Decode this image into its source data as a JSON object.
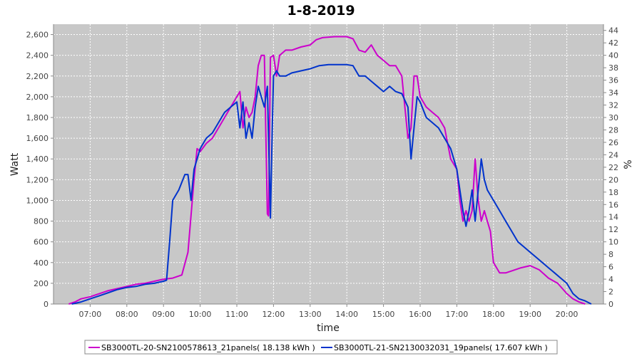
{
  "chart_data": {
    "type": "line",
    "title": "1-8-2019",
    "xlabel": "time",
    "ylabel": "Watt",
    "y2label": "%",
    "x_range_hours": [
      6.0,
      21.0
    ],
    "ylim": [
      0,
      2700
    ],
    "y2lim": [
      0,
      45
    ],
    "x_ticks": [
      "07:00",
      "08:00",
      "09:00",
      "10:00",
      "11:00",
      "12:00",
      "13:00",
      "14:00",
      "15:00",
      "16:00",
      "17:00",
      "18:00",
      "19:00",
      "20:00"
    ],
    "y_ticks": [
      "0",
      "200",
      "400",
      "600",
      "800",
      "1,000",
      "1,200",
      "1,400",
      "1,600",
      "1,800",
      "2,000",
      "2,200",
      "2,400",
      "2,600"
    ],
    "y2_ticks": [
      "0",
      "2",
      "4",
      "6",
      "8",
      "10",
      "12",
      "14",
      "16",
      "18",
      "20",
      "22",
      "24",
      "26",
      "28",
      "30",
      "32",
      "34",
      "36",
      "38",
      "40",
      "42",
      "44"
    ],
    "grid": true,
    "legend_position": "bottom",
    "series": [
      {
        "name": "SB3000TL-20-SN2100578613_21panels( 18.138 kWh )",
        "color": "#cc00cc",
        "points": [
          [
            "06:25",
            0
          ],
          [
            "06:35",
            20
          ],
          [
            "06:45",
            50
          ],
          [
            "07:00",
            70
          ],
          [
            "07:15",
            100
          ],
          [
            "07:30",
            130
          ],
          [
            "07:45",
            150
          ],
          [
            "08:00",
            170
          ],
          [
            "08:15",
            190
          ],
          [
            "08:30",
            200
          ],
          [
            "08:45",
            220
          ],
          [
            "09:00",
            240
          ],
          [
            "09:15",
            250
          ],
          [
            "09:30",
            280
          ],
          [
            "09:40",
            500
          ],
          [
            "09:50",
            1200
          ],
          [
            "09:55",
            1500
          ],
          [
            "10:00",
            1470
          ],
          [
            "10:10",
            1550
          ],
          [
            "10:20",
            1600
          ],
          [
            "10:30",
            1700
          ],
          [
            "10:40",
            1800
          ],
          [
            "10:50",
            1900
          ],
          [
            "11:00",
            2000
          ],
          [
            "11:05",
            2050
          ],
          [
            "11:10",
            1700
          ],
          [
            "11:15",
            1900
          ],
          [
            "11:20",
            1800
          ],
          [
            "11:25",
            1850
          ],
          [
            "11:30",
            2000
          ],
          [
            "11:35",
            2300
          ],
          [
            "11:40",
            2400
          ],
          [
            "11:45",
            2400
          ],
          [
            "11:50",
            870
          ],
          [
            "11:52",
            850
          ],
          [
            "11:55",
            2380
          ],
          [
            "12:00",
            2400
          ],
          [
            "12:05",
            2200
          ],
          [
            "12:10",
            2400
          ],
          [
            "12:20",
            2450
          ],
          [
            "12:30",
            2450
          ],
          [
            "12:45",
            2480
          ],
          [
            "13:00",
            2500
          ],
          [
            "13:10",
            2550
          ],
          [
            "13:20",
            2570
          ],
          [
            "13:40",
            2580
          ],
          [
            "14:00",
            2580
          ],
          [
            "14:10",
            2560
          ],
          [
            "14:20",
            2450
          ],
          [
            "14:30",
            2430
          ],
          [
            "14:40",
            2500
          ],
          [
            "14:50",
            2400
          ],
          [
            "15:00",
            2350
          ],
          [
            "15:10",
            2300
          ],
          [
            "15:20",
            2300
          ],
          [
            "15:30",
            2200
          ],
          [
            "15:40",
            1600
          ],
          [
            "15:45",
            1700
          ],
          [
            "15:50",
            2200
          ],
          [
            "15:55",
            2200
          ],
          [
            "16:00",
            2000
          ],
          [
            "16:10",
            1900
          ],
          [
            "16:20",
            1850
          ],
          [
            "16:30",
            1800
          ],
          [
            "16:40",
            1700
          ],
          [
            "16:50",
            1400
          ],
          [
            "17:00",
            1300
          ],
          [
            "17:05",
            1000
          ],
          [
            "17:10",
            800
          ],
          [
            "17:15",
            900
          ],
          [
            "17:20",
            800
          ],
          [
            "17:25",
            900
          ],
          [
            "17:30",
            1400
          ],
          [
            "17:35",
            1000
          ],
          [
            "17:40",
            800
          ],
          [
            "17:45",
            900
          ],
          [
            "17:50",
            800
          ],
          [
            "17:55",
            700
          ],
          [
            "18:00",
            400
          ],
          [
            "18:10",
            300
          ],
          [
            "18:20",
            300
          ],
          [
            "18:30",
            320
          ],
          [
            "18:45",
            350
          ],
          [
            "19:00",
            370
          ],
          [
            "19:15",
            330
          ],
          [
            "19:30",
            250
          ],
          [
            "19:45",
            200
          ],
          [
            "20:00",
            100
          ],
          [
            "20:10",
            50
          ],
          [
            "20:20",
            20
          ],
          [
            "20:30",
            0
          ]
        ]
      },
      {
        "name": "SB3000TL-21-SN2130032031_19panels( 17.607 kWh )",
        "color": "#0033cc",
        "points": [
          [
            "06:30",
            0
          ],
          [
            "06:45",
            20
          ],
          [
            "07:00",
            50
          ],
          [
            "07:15",
            80
          ],
          [
            "07:30",
            110
          ],
          [
            "07:45",
            140
          ],
          [
            "08:00",
            160
          ],
          [
            "08:15",
            170
          ],
          [
            "08:30",
            190
          ],
          [
            "08:45",
            200
          ],
          [
            "09:00",
            220
          ],
          [
            "09:05",
            230
          ],
          [
            "09:10",
            600
          ],
          [
            "09:15",
            1000
          ],
          [
            "09:25",
            1100
          ],
          [
            "09:35",
            1250
          ],
          [
            "09:40",
            1250
          ],
          [
            "09:45",
            1000
          ],
          [
            "09:50",
            1300
          ],
          [
            "10:00",
            1500
          ],
          [
            "10:10",
            1600
          ],
          [
            "10:20",
            1650
          ],
          [
            "10:30",
            1750
          ],
          [
            "10:40",
            1850
          ],
          [
            "10:50",
            1900
          ],
          [
            "11:00",
            1950
          ],
          [
            "11:05",
            1700
          ],
          [
            "11:10",
            1950
          ],
          [
            "11:15",
            1600
          ],
          [
            "11:20",
            1750
          ],
          [
            "11:25",
            1600
          ],
          [
            "11:30",
            1900
          ],
          [
            "11:35",
            2100
          ],
          [
            "11:40",
            2000
          ],
          [
            "11:45",
            1900
          ],
          [
            "11:50",
            2100
          ],
          [
            "11:55",
            830
          ],
          [
            "11:58",
            1700
          ],
          [
            "12:00",
            2200
          ],
          [
            "12:05",
            2250
          ],
          [
            "12:10",
            2200
          ],
          [
            "12:20",
            2200
          ],
          [
            "12:30",
            2230
          ],
          [
            "12:45",
            2250
          ],
          [
            "13:00",
            2270
          ],
          [
            "13:15",
            2300
          ],
          [
            "13:30",
            2310
          ],
          [
            "13:45",
            2310
          ],
          [
            "14:00",
            2310
          ],
          [
            "14:10",
            2300
          ],
          [
            "14:20",
            2200
          ],
          [
            "14:30",
            2200
          ],
          [
            "14:40",
            2150
          ],
          [
            "14:50",
            2100
          ],
          [
            "15:00",
            2050
          ],
          [
            "15:10",
            2100
          ],
          [
            "15:20",
            2050
          ],
          [
            "15:30",
            2030
          ],
          [
            "15:40",
            1900
          ],
          [
            "15:45",
            1400
          ],
          [
            "15:50",
            1700
          ],
          [
            "15:55",
            2000
          ],
          [
            "16:00",
            1950
          ],
          [
            "16:10",
            1800
          ],
          [
            "16:20",
            1750
          ],
          [
            "16:30",
            1700
          ],
          [
            "16:40",
            1600
          ],
          [
            "16:50",
            1500
          ],
          [
            "17:00",
            1300
          ],
          [
            "17:05",
            1100
          ],
          [
            "17:10",
            900
          ],
          [
            "17:15",
            750
          ],
          [
            "17:20",
            900
          ],
          [
            "17:25",
            1100
          ],
          [
            "17:30",
            800
          ],
          [
            "17:35",
            1100
          ],
          [
            "17:40",
            1400
          ],
          [
            "17:45",
            1200
          ],
          [
            "17:50",
            1100
          ],
          [
            "18:00",
            1000
          ],
          [
            "18:10",
            900
          ],
          [
            "18:20",
            800
          ],
          [
            "18:30",
            700
          ],
          [
            "18:40",
            600
          ],
          [
            "18:50",
            550
          ],
          [
            "19:00",
            500
          ],
          [
            "19:10",
            450
          ],
          [
            "19:20",
            400
          ],
          [
            "19:30",
            350
          ],
          [
            "19:40",
            300
          ],
          [
            "19:50",
            250
          ],
          [
            "20:00",
            200
          ],
          [
            "20:10",
            100
          ],
          [
            "20:20",
            50
          ],
          [
            "20:30",
            30
          ],
          [
            "20:40",
            0
          ]
        ]
      }
    ]
  },
  "legend": {
    "items": [
      {
        "label": "SB3000TL-20-SN2100578613_21panels( 18.138 kWh )",
        "color": "#cc00cc"
      },
      {
        "label": "SB3000TL-21-SN2130032031_19panels( 17.607 kWh )",
        "color": "#0033cc"
      }
    ]
  }
}
